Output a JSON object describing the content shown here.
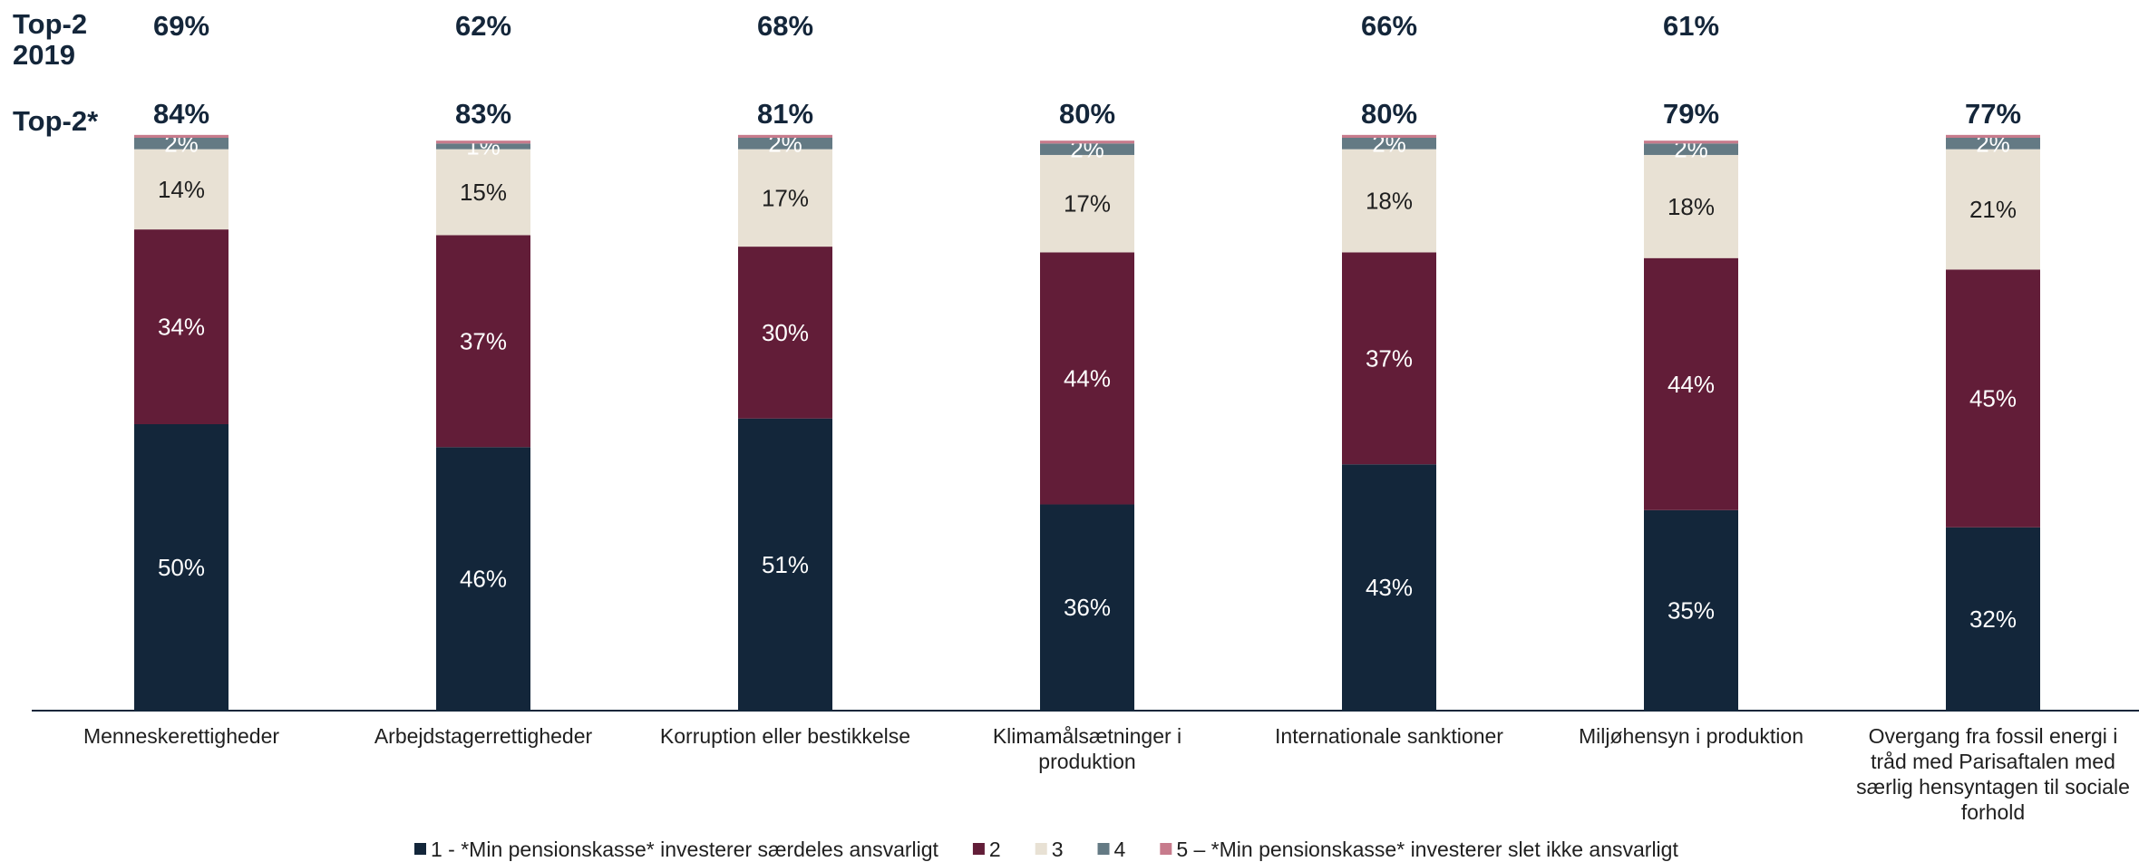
{
  "chart_data": {
    "type": "bar",
    "stacked": true,
    "categories": [
      [
        "Menneskerettigheder"
      ],
      [
        "Arbejdstagerrettigheder"
      ],
      [
        "Korruption eller bestikkelse"
      ],
      [
        "Klimamålsætninger i",
        "produktion"
      ],
      [
        "Internationale sanktioner"
      ],
      [
        "Miljøhensyn i produktion"
      ],
      [
        "Overgang fra fossil energi i",
        "tråd med Parisaftalen med",
        "særlig hensyntagen til sociale",
        "forhold"
      ]
    ],
    "series": [
      {
        "name": "1 - *Min pensionskasse* investerer særdeles ansvarligt",
        "color": "#13263a",
        "label_color": "#ffffff",
        "values": [
          50,
          46,
          51,
          36,
          43,
          35,
          32
        ],
        "labels": [
          "50%",
          "46%",
          "51%",
          "36%",
          "43%",
          "35%",
          "32%"
        ]
      },
      {
        "name": "2",
        "color": "#621d38",
        "label_color": "#ffffff",
        "values": [
          34,
          37,
          30,
          44,
          37,
          44,
          45
        ],
        "labels": [
          "34%",
          "37%",
          "30%",
          "44%",
          "37%",
          "44%",
          "45%"
        ]
      },
      {
        "name": "3",
        "color": "#e8e1d4",
        "label_color": "#1f1f1f",
        "values": [
          14,
          15,
          17,
          17,
          18,
          18,
          21
        ],
        "labels": [
          "14%",
          "15%",
          "17%",
          "17%",
          "18%",
          "18%",
          "21%"
        ]
      },
      {
        "name": "4",
        "color": "#647a84",
        "label_color": "#ffffff",
        "values": [
          2,
          1,
          2,
          2,
          2,
          2,
          2
        ],
        "labels": [
          "2%",
          "1%",
          "2%",
          "2%",
          "2%",
          "2%",
          "2%"
        ]
      },
      {
        "name": "5 – *Min pensionskasse* investerer slet ikke ansvarligt",
        "color": "#c77b8c",
        "label_color": "#ffffff",
        "values": [
          0.5,
          0.5,
          0.5,
          0.5,
          0.5,
          0.5,
          0.5
        ],
        "labels": [
          "",
          "",
          "",
          "",
          "",
          "",
          ""
        ]
      }
    ],
    "top2_2019": {
      "label": "Top-2 2019",
      "label_lines": [
        "Top-2",
        "2019"
      ],
      "values": [
        "69%",
        "62%",
        "68%",
        "",
        "66%",
        "61%",
        ""
      ]
    },
    "top2": {
      "label": "Top-2*",
      "values": [
        "84%",
        "83%",
        "81%",
        "80%",
        "80%",
        "79%",
        "77%"
      ]
    },
    "ylim": [
      0,
      100
    ],
    "legend_position": "bottom",
    "grid": false
  }
}
